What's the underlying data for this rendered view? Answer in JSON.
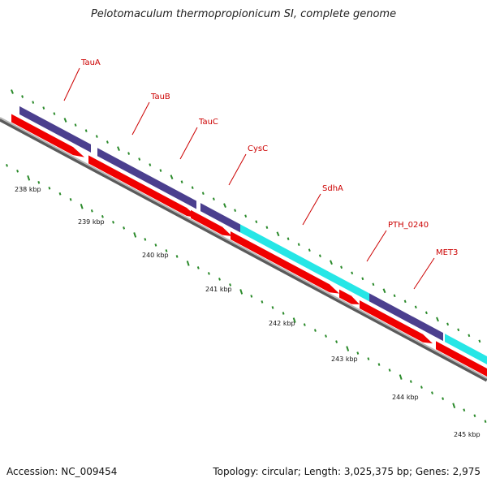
{
  "title": "Pelotomaculum thermopropionicum SI, complete genome",
  "footer": {
    "accession": "Accession: NC_009454",
    "summary": "Topology: circular; Length: 3,025,375 bp; Genes: 2,975"
  },
  "colors": {
    "gene_strand_feature": "#4b3f8e",
    "gene_cds": "#f00000",
    "gene_highlight": "#26e6e6",
    "backbone": "#888888",
    "tick": "#2a8a2a",
    "label": "#cc0000",
    "scale_label": "#111111"
  },
  "scale": {
    "tick_labels": [
      "238 kbp",
      "239 kbp",
      "240 kbp",
      "241 kbp",
      "242 kbp",
      "243 kbp",
      "244 kbp",
      "245 kbp"
    ]
  },
  "gene_labels": [
    "TauA",
    "TauB",
    "TauC",
    "CysC",
    "SdhA",
    "PTH_0240",
    "MET3"
  ]
}
